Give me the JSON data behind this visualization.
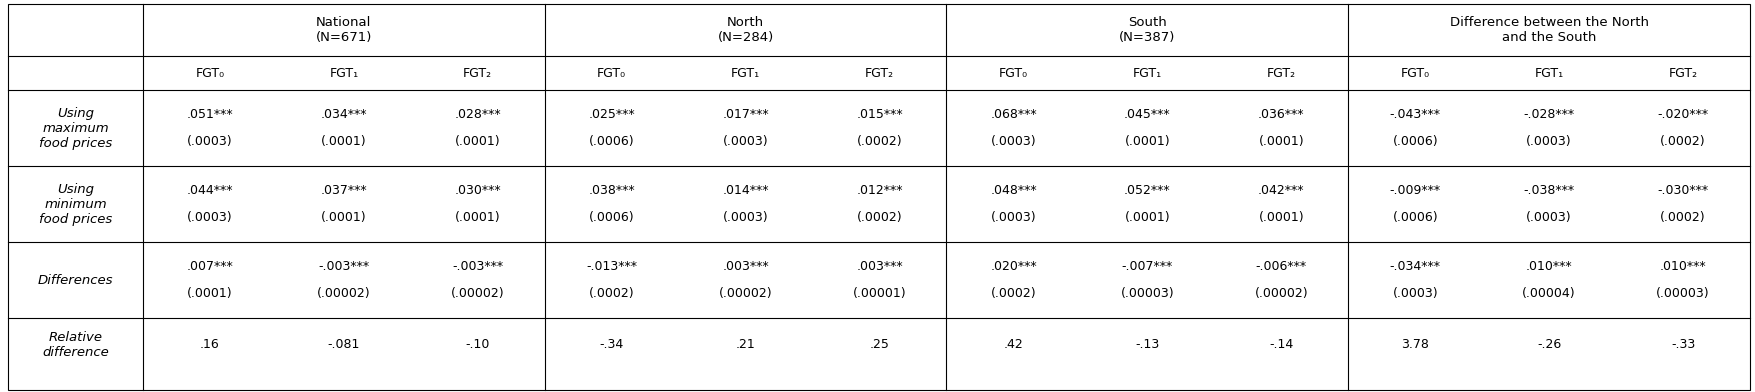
{
  "col_groups": [
    {
      "label": "National\n(N=671)",
      "span": 3
    },
    {
      "label": "North\n(N=284)",
      "span": 3
    },
    {
      "label": "South\n(N=387)",
      "span": 3
    },
    {
      "label": "Difference between the North\nand the South",
      "span": 3
    }
  ],
  "sub_headers": [
    "FGT₀",
    "FGT₁",
    "FGT₂",
    "FGT₀",
    "FGT₁",
    "FGT₂",
    "FGT₀",
    "FGT₁",
    "FGT₂",
    "FGT₀",
    "FGT₁",
    "FGT₂"
  ],
  "rows": [
    {
      "label": "Using\nmaximum\nfood prices",
      "line1": [
        ".051***",
        ".034***",
        ".028***",
        ".025***",
        ".017***",
        ".015***",
        ".068***",
        ".045***",
        ".036***",
        "-.043***",
        "-.028***",
        "-.020***"
      ],
      "line2": [
        "(.0003)",
        "(.0001)",
        "(.0001)",
        "(.0006)",
        "(.0003)",
        "(.0002)",
        "(.0003)",
        "(.0001)",
        "(.0001)",
        "(.0006)",
        "(.0003)",
        "(.0002)"
      ],
      "two_lines": true
    },
    {
      "label": "Using\nminimum\nfood prices",
      "line1": [
        ".044***",
        ".037***",
        ".030***",
        ".038***",
        ".014***",
        ".012***",
        ".048***",
        ".052***",
        ".042***",
        "-.009***",
        "-.038***",
        "-.030***"
      ],
      "line2": [
        "(.0003)",
        "(.0001)",
        "(.0001)",
        "(.0006)",
        "(.0003)",
        "(.0002)",
        "(.0003)",
        "(.0001)",
        "(.0001)",
        "(.0006)",
        "(.0003)",
        "(.0002)"
      ],
      "two_lines": true
    },
    {
      "label": "Differences",
      "line1": [
        ".007***",
        "-.003***",
        "-.003***",
        "-.013***",
        ".003***",
        ".003***",
        ".020***",
        "-.007***",
        "-.006***",
        "-.034***",
        ".010***",
        ".010***"
      ],
      "line2": [
        "(.0001)",
        "(.00002)",
        "(.00002)",
        "(.0002)",
        "(.00002)",
        "(.00001)",
        "(.0002)",
        "(.00003)",
        "(.00002)",
        "(.0003)",
        "(.00004)",
        "(.00003)"
      ],
      "two_lines": true
    },
    {
      "label": "Relative\ndifference",
      "line1": [
        ".16",
        "-.081",
        "-.10",
        "-.34",
        ".21",
        ".25",
        ".42",
        "-.13",
        "-.14",
        "3.78",
        "-.26",
        "-.33"
      ],
      "line2": [
        "",
        "",
        "",
        "",
        "",
        "",
        "",
        "",
        "",
        "",
        "",
        ""
      ],
      "two_lines": false
    }
  ],
  "bg_color": "#ffffff",
  "line_color": "#000000",
  "text_color": "#000000",
  "data_font_size": 9.0,
  "header_font_size": 9.5,
  "label_font_size": 9.5
}
